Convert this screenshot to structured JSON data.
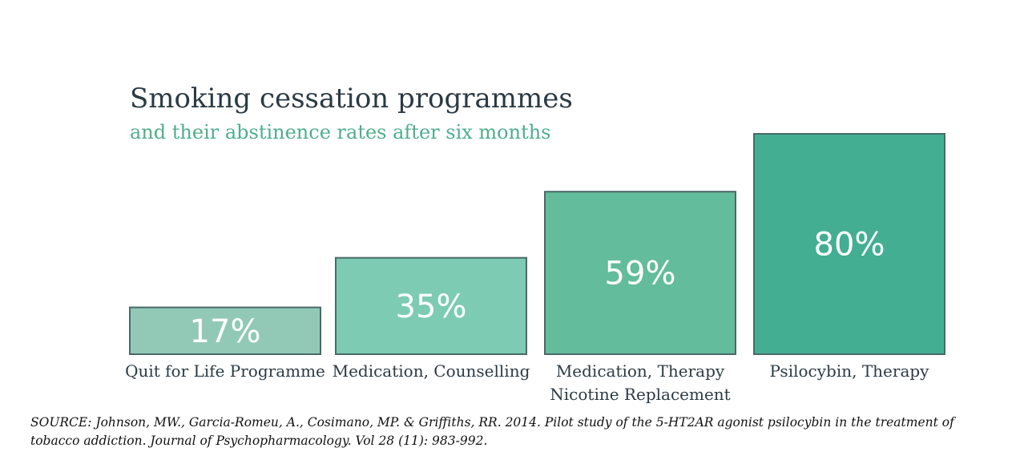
{
  "chart_data": {
    "type": "bar",
    "title": "Smoking cessation programmes",
    "subtitle": "and their abstinence rates after six months",
    "categories": [
      [
        "Quit for Life Programme"
      ],
      [
        "Medication, Counselling"
      ],
      [
        "Medication, Therapy",
        "Nicotine Replacement"
      ],
      [
        "Psilocybin, Therapy"
      ]
    ],
    "values": [
      17,
      35,
      59,
      80
    ],
    "value_labels": [
      "17%",
      "35%",
      "59%",
      "80%"
    ],
    "colors": [
      "#92c9b6",
      "#7ccbb2",
      "#63bc9b",
      "#43ae92"
    ],
    "outline_color": "#4a6a66",
    "ylim": [
      0,
      80
    ],
    "grid": false,
    "legend": "none"
  },
  "source": "SOURCE: Johnson, MW., Garcia-Romeu, A., Cosimano, MP. & Griffiths, RR. 2014. Pilot study of the 5-HT2AR agonist psilocybin in the treatment of tobacco addiction. Journal of Psychopharmacology. Vol 28 (11): 983-992."
}
